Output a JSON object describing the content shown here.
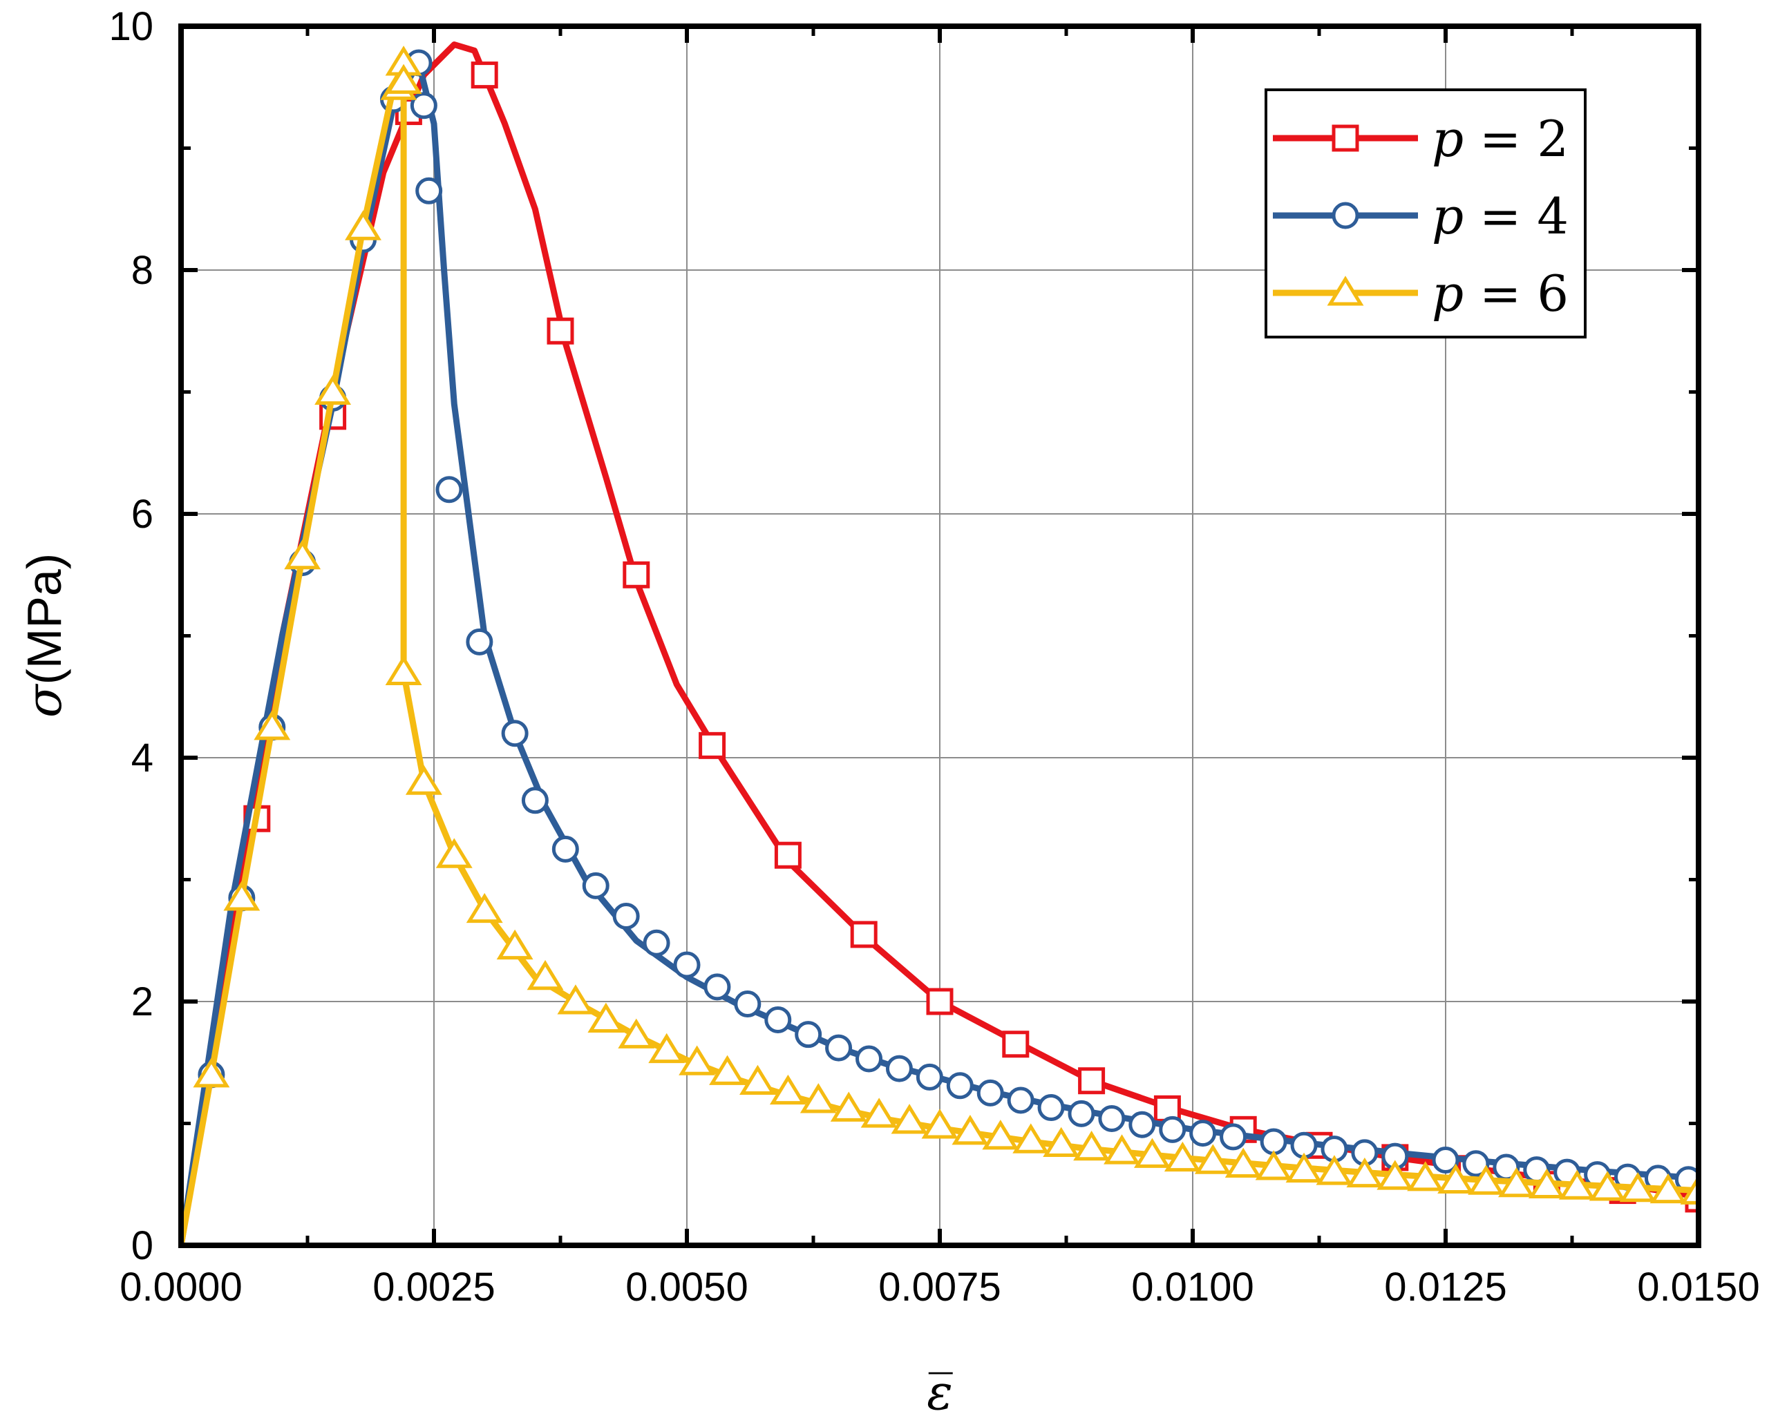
{
  "chart_data": {
    "type": "line",
    "xlabel": "ε̅",
    "ylabel_symbol": "σ",
    "ylabel_unit": "(MPa)",
    "xlim": [
      0,
      0.015
    ],
    "ylim": [
      0,
      10
    ],
    "xticks": [
      0,
      0.0025,
      0.005,
      0.0075,
      0.01,
      0.0125,
      0.015
    ],
    "xtick_labels": [
      "0.0000",
      "0.0025",
      "0.0050",
      "0.0075",
      "0.0100",
      "0.0125",
      "0.0150"
    ],
    "yticks": [
      0,
      2,
      4,
      6,
      8,
      10
    ],
    "ytick_labels": [
      "0",
      "2",
      "4",
      "6",
      "8",
      "10"
    ],
    "grid": true,
    "legend_position": "top-right",
    "series": [
      {
        "name": "p = 2",
        "label_var": "p",
        "label_eq": " = ",
        "label_val": "2",
        "color": "#e8141b",
        "marker": "square",
        "line": [
          [
            0,
            0
          ],
          [
            0.0005,
            2.5
          ],
          [
            0.001,
            5.0
          ],
          [
            0.0015,
            7.0
          ],
          [
            0.002,
            8.8
          ],
          [
            0.0024,
            9.6
          ],
          [
            0.0027,
            9.85
          ],
          [
            0.0029,
            9.8
          ],
          [
            0.0032,
            9.2
          ],
          [
            0.0035,
            8.5
          ],
          [
            0.0038,
            7.4
          ],
          [
            0.0042,
            6.3
          ],
          [
            0.0045,
            5.45
          ],
          [
            0.0049,
            4.6
          ],
          [
            0.0053,
            4.05
          ],
          [
            0.006,
            3.15
          ],
          [
            0.0068,
            2.5
          ],
          [
            0.0075,
            2.0
          ],
          [
            0.0083,
            1.65
          ],
          [
            0.009,
            1.35
          ],
          [
            0.0098,
            1.12
          ],
          [
            0.0105,
            0.95
          ],
          [
            0.0113,
            0.82
          ],
          [
            0.012,
            0.72
          ],
          [
            0.0128,
            0.63
          ],
          [
            0.0135,
            0.55
          ],
          [
            0.0143,
            0.49
          ],
          [
            0.015,
            0.4
          ]
        ],
        "markers": [
          [
            0.00075,
            3.5
          ],
          [
            0.0015,
            6.8
          ],
          [
            0.00225,
            9.3
          ],
          [
            0.003,
            9.6
          ],
          [
            0.00375,
            7.5
          ],
          [
            0.0045,
            5.5
          ],
          [
            0.00525,
            4.1
          ],
          [
            0.006,
            3.2
          ],
          [
            0.00675,
            2.55
          ],
          [
            0.0075,
            2.0
          ],
          [
            0.00825,
            1.65
          ],
          [
            0.009,
            1.35
          ],
          [
            0.00975,
            1.12
          ],
          [
            0.0105,
            0.95
          ],
          [
            0.01125,
            0.82
          ],
          [
            0.012,
            0.72
          ],
          [
            0.01275,
            0.63
          ],
          [
            0.0135,
            0.5
          ],
          [
            0.01425,
            0.45
          ],
          [
            0.015,
            0.38
          ]
        ]
      },
      {
        "name": "p = 4",
        "label_var": "p",
        "label_eq": " = ",
        "label_val": "4",
        "color": "#2e5d98",
        "marker": "circle",
        "line": [
          [
            0,
            0
          ],
          [
            0.0005,
            2.8
          ],
          [
            0.001,
            5.0
          ],
          [
            0.0015,
            6.9
          ],
          [
            0.0018,
            8.2
          ],
          [
            0.0021,
            9.35
          ],
          [
            0.00235,
            9.7
          ],
          [
            0.0025,
            9.2
          ],
          [
            0.0026,
            8.0
          ],
          [
            0.0027,
            6.9
          ],
          [
            0.003,
            5.0
          ],
          [
            0.0033,
            4.2
          ],
          [
            0.0036,
            3.6
          ],
          [
            0.004,
            3.0
          ],
          [
            0.0045,
            2.5
          ],
          [
            0.005,
            2.2
          ],
          [
            0.0055,
            1.98
          ],
          [
            0.006,
            1.8
          ],
          [
            0.0065,
            1.62
          ],
          [
            0.007,
            1.48
          ],
          [
            0.0075,
            1.37
          ],
          [
            0.008,
            1.26
          ],
          [
            0.0085,
            1.17
          ],
          [
            0.009,
            1.09
          ],
          [
            0.0095,
            1.02
          ],
          [
            0.01,
            0.95
          ],
          [
            0.011,
            0.85
          ],
          [
            0.012,
            0.76
          ],
          [
            0.013,
            0.68
          ],
          [
            0.014,
            0.61
          ],
          [
            0.015,
            0.55
          ]
        ],
        "markers": [
          [
            0.0003,
            1.4
          ],
          [
            0.0006,
            2.85
          ],
          [
            0.0009,
            4.25
          ],
          [
            0.0012,
            5.6
          ],
          [
            0.0015,
            6.95
          ],
          [
            0.0018,
            8.25
          ],
          [
            0.0021,
            9.4
          ],
          [
            0.00235,
            9.7
          ],
          [
            0.0024,
            9.35
          ],
          [
            0.00245,
            8.65
          ],
          [
            0.00265,
            6.2
          ],
          [
            0.00295,
            4.95
          ],
          [
            0.0033,
            4.2
          ],
          [
            0.0035,
            3.65
          ],
          [
            0.0038,
            3.25
          ],
          [
            0.0041,
            2.95
          ],
          [
            0.0044,
            2.7
          ],
          [
            0.0047,
            2.48
          ],
          [
            0.005,
            2.3
          ],
          [
            0.0053,
            2.12
          ],
          [
            0.0056,
            1.98
          ],
          [
            0.0059,
            1.85
          ],
          [
            0.0062,
            1.73
          ],
          [
            0.0065,
            1.62
          ],
          [
            0.0068,
            1.53
          ],
          [
            0.0071,
            1.45
          ],
          [
            0.0074,
            1.38
          ],
          [
            0.0077,
            1.31
          ],
          [
            0.008,
            1.25
          ],
          [
            0.0083,
            1.19
          ],
          [
            0.0086,
            1.13
          ],
          [
            0.0089,
            1.08
          ],
          [
            0.0092,
            1.04
          ],
          [
            0.0095,
            0.99
          ],
          [
            0.0098,
            0.95
          ],
          [
            0.0101,
            0.92
          ],
          [
            0.0104,
            0.89
          ],
          [
            0.0108,
            0.85
          ],
          [
            0.0111,
            0.82
          ],
          [
            0.0114,
            0.79
          ],
          [
            0.0117,
            0.76
          ],
          [
            0.012,
            0.73
          ],
          [
            0.0125,
            0.7
          ],
          [
            0.0128,
            0.67
          ],
          [
            0.0131,
            0.64
          ],
          [
            0.0134,
            0.62
          ],
          [
            0.0137,
            0.6
          ],
          [
            0.014,
            0.58
          ],
          [
            0.0143,
            0.56
          ],
          [
            0.0146,
            0.55
          ],
          [
            0.0149,
            0.54
          ]
        ]
      },
      {
        "name": "p = 6",
        "label_var": "p",
        "label_eq": " = ",
        "label_val": "6",
        "color": "#f5bb12",
        "marker": "triangle",
        "line": [
          [
            0,
            0
          ],
          [
            0.0003,
            1.4
          ],
          [
            0.0006,
            2.85
          ],
          [
            0.0009,
            4.25
          ],
          [
            0.0012,
            5.65
          ],
          [
            0.0015,
            7.0
          ],
          [
            0.0018,
            8.35
          ],
          [
            0.0021,
            9.5
          ],
          [
            0.0022,
            9.7
          ],
          [
            0.0022,
            4.7
          ],
          [
            0.0024,
            3.8
          ],
          [
            0.0027,
            3.2
          ],
          [
            0.003,
            2.75
          ],
          [
            0.0035,
            2.2
          ],
          [
            0.004,
            1.95
          ],
          [
            0.0045,
            1.72
          ],
          [
            0.005,
            1.52
          ],
          [
            0.0055,
            1.36
          ],
          [
            0.006,
            1.23
          ],
          [
            0.0065,
            1.12
          ],
          [
            0.007,
            1.03
          ],
          [
            0.0075,
            0.96
          ],
          [
            0.008,
            0.9
          ],
          [
            0.0085,
            0.84
          ],
          [
            0.009,
            0.79
          ],
          [
            0.0095,
            0.75
          ],
          [
            0.01,
            0.71
          ],
          [
            0.011,
            0.64
          ],
          [
            0.012,
            0.58
          ],
          [
            0.013,
            0.53
          ],
          [
            0.014,
            0.49
          ],
          [
            0.015,
            0.45
          ]
        ],
        "markers": [
          [
            0.0003,
            1.4
          ],
          [
            0.0006,
            2.85
          ],
          [
            0.0009,
            4.25
          ],
          [
            0.0012,
            5.65
          ],
          [
            0.0015,
            7.0
          ],
          [
            0.0018,
            8.35
          ],
          [
            0.00215,
            9.5
          ],
          [
            0.0022,
            9.7
          ],
          [
            0.0022,
            9.55
          ],
          [
            0.0022,
            4.7
          ],
          [
            0.0024,
            3.8
          ],
          [
            0.0027,
            3.2
          ],
          [
            0.003,
            2.75
          ],
          [
            0.0033,
            2.45
          ],
          [
            0.0036,
            2.2
          ],
          [
            0.0039,
            2.0
          ],
          [
            0.0042,
            1.85
          ],
          [
            0.0045,
            1.72
          ],
          [
            0.0048,
            1.6
          ],
          [
            0.0051,
            1.5
          ],
          [
            0.0054,
            1.42
          ],
          [
            0.0057,
            1.34
          ],
          [
            0.006,
            1.26
          ],
          [
            0.0063,
            1.19
          ],
          [
            0.0066,
            1.12
          ],
          [
            0.0069,
            1.07
          ],
          [
            0.0072,
            1.02
          ],
          [
            0.0075,
            0.98
          ],
          [
            0.0078,
            0.93
          ],
          [
            0.0081,
            0.89
          ],
          [
            0.0084,
            0.86
          ],
          [
            0.0087,
            0.83
          ],
          [
            0.009,
            0.8
          ],
          [
            0.0093,
            0.77
          ],
          [
            0.0096,
            0.74
          ],
          [
            0.0099,
            0.71
          ],
          [
            0.0102,
            0.69
          ],
          [
            0.0105,
            0.66
          ],
          [
            0.0108,
            0.64
          ],
          [
            0.0111,
            0.62
          ],
          [
            0.0114,
            0.6
          ],
          [
            0.0117,
            0.58
          ],
          [
            0.012,
            0.56
          ],
          [
            0.0123,
            0.55
          ],
          [
            0.0126,
            0.53
          ],
          [
            0.0129,
            0.52
          ],
          [
            0.0132,
            0.5
          ],
          [
            0.0135,
            0.49
          ],
          [
            0.0138,
            0.48
          ],
          [
            0.0141,
            0.47
          ],
          [
            0.0144,
            0.46
          ],
          [
            0.0147,
            0.45
          ],
          [
            0.015,
            0.44
          ]
        ]
      }
    ]
  }
}
